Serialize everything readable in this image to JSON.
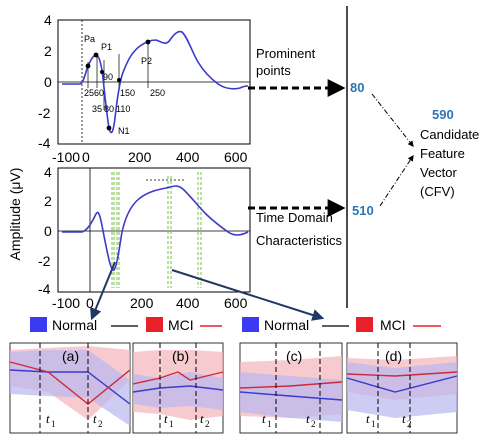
{
  "top_plot": {
    "y_ticks": [
      "4",
      "2",
      "0",
      "-2",
      "-4"
    ],
    "x_ticks": [
      "-100",
      "0",
      "200",
      "400",
      "600"
    ],
    "peak_labels": [
      "Pa",
      "P1",
      "P2",
      "N1"
    ],
    "latency_labels": [
      "25",
      "60",
      "90",
      "35",
      "80",
      "110",
      "150",
      "250"
    ]
  },
  "bottom_plot": {
    "y_ticks": [
      "4",
      "2",
      "0",
      "-2",
      "-4"
    ],
    "x_ticks": [
      "-100",
      "0",
      "200",
      "400",
      "600"
    ]
  },
  "y_axis_label": "Amplitude (μV)",
  "annotations": {
    "prominent_line1": "Prominent",
    "prominent_line2": "points",
    "time_line1": "Time Domain",
    "time_line2": "Characteristics",
    "count_prominent": "80",
    "count_time": "510",
    "count_total": "590",
    "cfv_line1": "Candidate",
    "cfv_line2": "Feature",
    "cfv_line3": "Vector",
    "cfv_line4": "(CFV)"
  },
  "legend": {
    "normal": "Normal",
    "mci": "MCI",
    "normal_color": "#3a3af0",
    "mci_color": "#e8202a"
  },
  "panels": [
    {
      "label": "(a)",
      "t1": "t",
      "t1_sub": "1",
      "t2": "t",
      "t2_sub": "2"
    },
    {
      "label": "(b)",
      "t1": "t",
      "t1_sub": "1",
      "t2": "t",
      "t2_sub": "2"
    },
    {
      "label": "(c)",
      "t1": "t",
      "t1_sub": "1",
      "t2": "t",
      "t2_sub": "2"
    },
    {
      "label": "(d)",
      "t1": "t",
      "t1_sub": "1",
      "t2": "t",
      "t2_sub": "2"
    }
  ]
}
